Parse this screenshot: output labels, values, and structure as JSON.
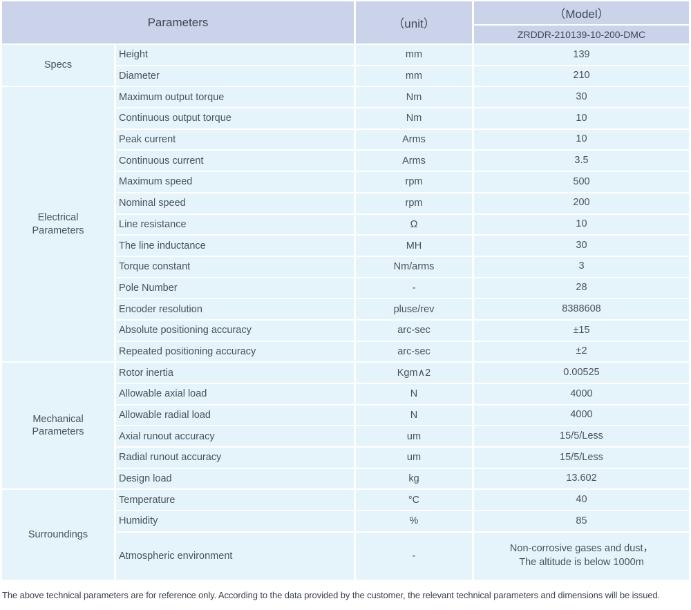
{
  "table": {
    "header": {
      "parameters_label": "Parameters",
      "unit_label": "（unit）",
      "model_label": "（Model）",
      "model_value": "ZRDDR-210139-10-200-DMC"
    },
    "sections": [
      {
        "category": "Specs",
        "rows": [
          {
            "name": "Height",
            "unit": "mm",
            "value": "139"
          },
          {
            "name": "Diameter",
            "unit": "mm",
            "value": "210"
          }
        ]
      },
      {
        "category": "Electrical\nParameters",
        "rows": [
          {
            "name": "Maximum output torque",
            "unit": "Nm",
            "value": "30"
          },
          {
            "name": "Continuous output torque",
            "unit": "Nm",
            "value": "10"
          },
          {
            "name": "Peak current",
            "unit": "Arms",
            "value": "10"
          },
          {
            "name": "Continuous current",
            "unit": "Arms",
            "value": "3.5"
          },
          {
            "name": "Maximum speed",
            "unit": "rpm",
            "value": "500"
          },
          {
            "name": "Nominal speed",
            "unit": "rpm",
            "value": "200"
          },
          {
            "name": "Line resistance",
            "unit": "Ω",
            "value": "10"
          },
          {
            "name": "The line inductance",
            "unit": "MH",
            "value": "30"
          },
          {
            "name": "Torque constant",
            "unit": "Nm/arms",
            "value": "3"
          },
          {
            "name": "Pole Number",
            "unit": "-",
            "value": "28"
          },
          {
            "name": "Encoder resolution",
            "unit": "pluse/rev",
            "value": "8388608"
          },
          {
            "name": "Absolute positioning accuracy",
            "unit": "arc-sec",
            "value": "±15"
          },
          {
            "name": "Repeated positioning accuracy",
            "unit": "arc-sec",
            "value": "±2"
          }
        ]
      },
      {
        "category": "Mechanical\nParameters",
        "rows": [
          {
            "name": "Rotor inertia",
            "unit": "Kgm∧2",
            "value": "0.00525"
          },
          {
            "name": "Allowable axial load",
            "unit": "N",
            "value": "4000"
          },
          {
            "name": "Allowable radial load",
            "unit": "N",
            "value": "4000"
          },
          {
            "name": "Axial runout accuracy",
            "unit": "um",
            "value": "15/5/Less"
          },
          {
            "name": "Radial runout accuracy",
            "unit": "um",
            "value": "15/5/Less"
          },
          {
            "name": "Design load",
            "unit": "kg",
            "value": "13.602"
          }
        ]
      },
      {
        "category": "Surroundings",
        "rows": [
          {
            "name": "Temperature",
            "unit": "°C",
            "value": "40"
          },
          {
            "name": "Humidity",
            "unit": "%",
            "value": "85"
          },
          {
            "name": "Atmospheric environment",
            "unit": "-",
            "value": "Non-corrosive gases and dust，\nThe altitude is below 1000m",
            "tall": true
          }
        ]
      }
    ]
  },
  "footer": {
    "note": "The above technical parameters are for reference only. According to the data provided by the customer, the relevant technical parameters and dimensions will be issued."
  },
  "colors": {
    "header_bg": "#cad3ea",
    "row_bg": "#e5f3fb",
    "header_text": "#3f4752",
    "body_text": "#4a525b"
  }
}
